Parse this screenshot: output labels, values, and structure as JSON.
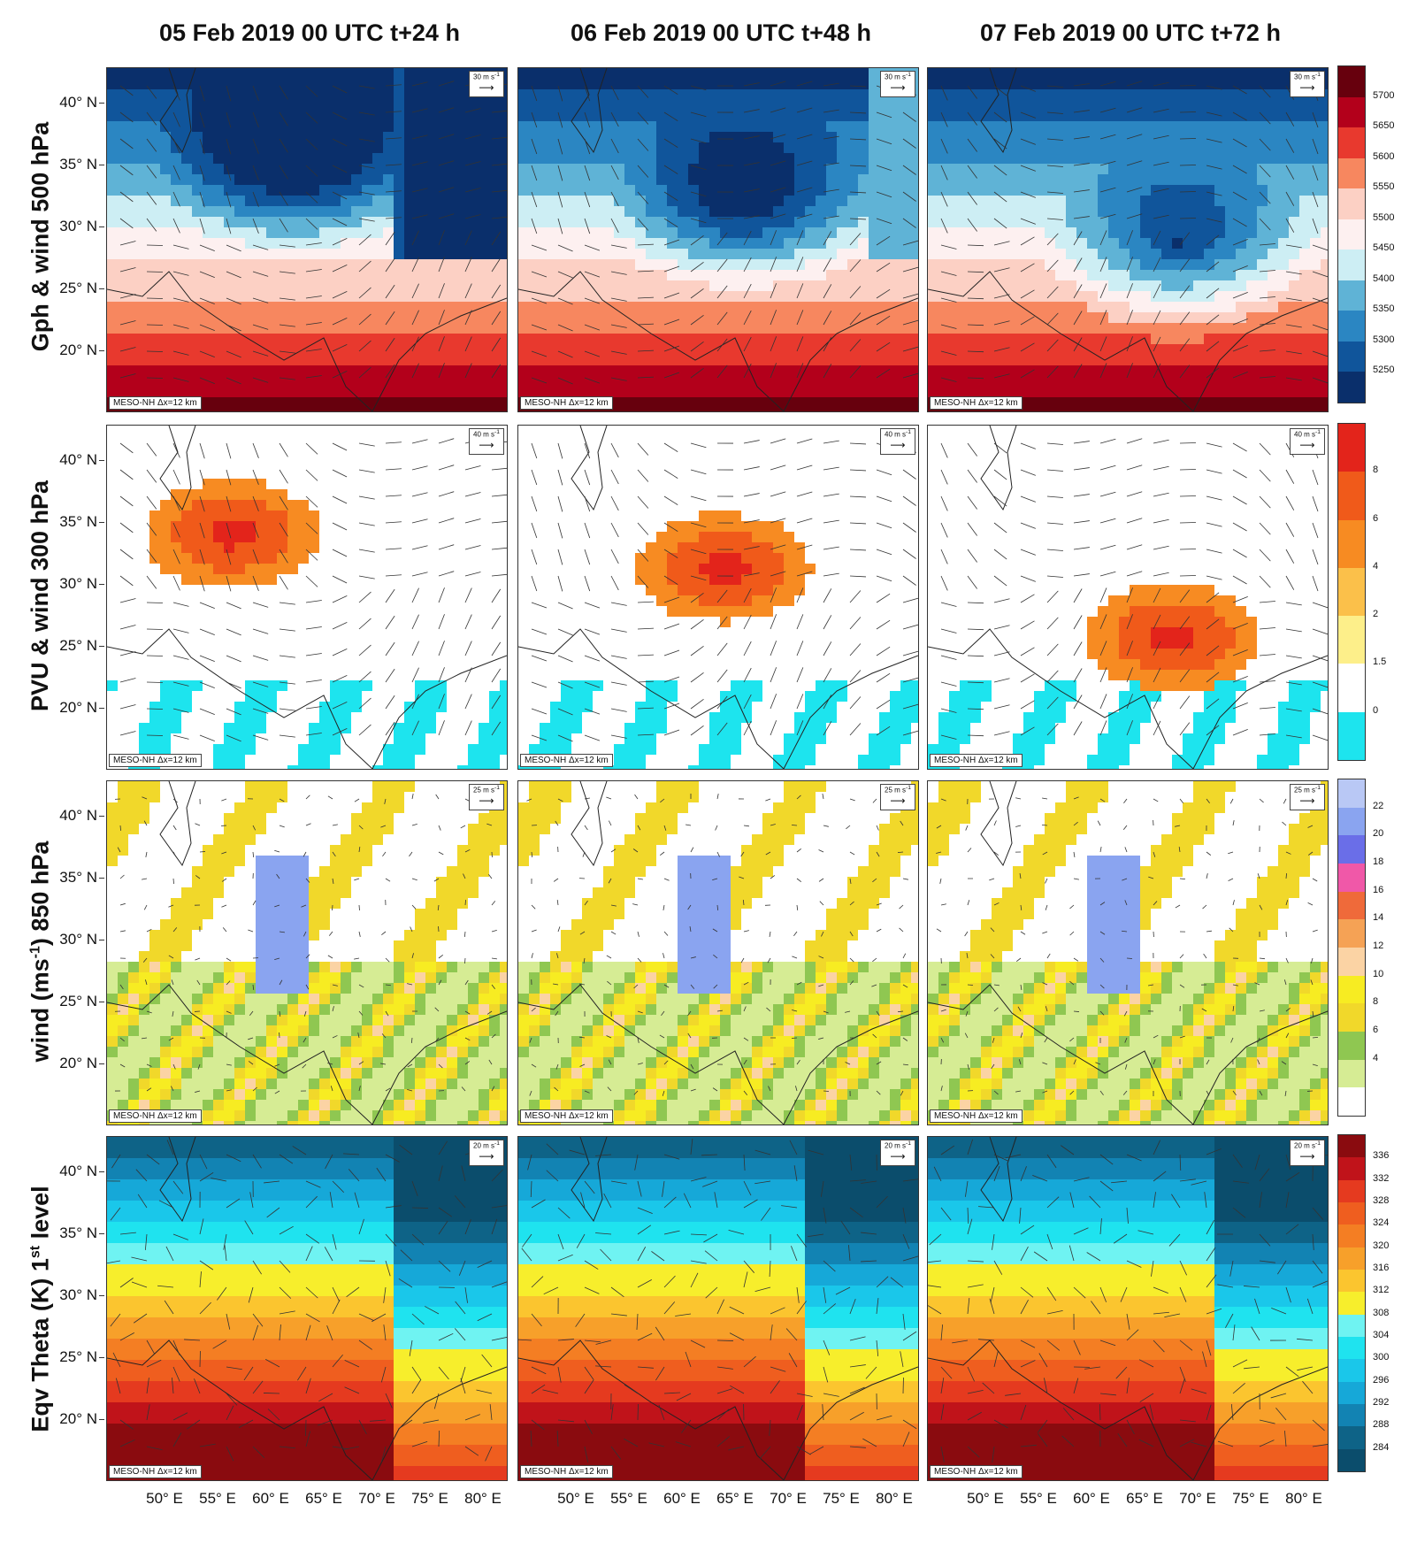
{
  "columns": [
    {
      "title": "05 Feb 2019 00 UTC t+24 h"
    },
    {
      "title": "06 Feb 2019 00 UTC t+48 h"
    },
    {
      "title": "07 Feb 2019 00 UTC t+72 h"
    }
  ],
  "rows": [
    {
      "label_main": "Gph & wind 500 hPa",
      "label_sup": "",
      "label_tail": "",
      "ref_vector": "30 m s",
      "colorbar": {
        "ticks": [
          "5700",
          "5650",
          "5600",
          "5550",
          "5500",
          "5450",
          "5400",
          "5350",
          "5300",
          "5250"
        ],
        "colors": [
          "#67000d",
          "#b3001b",
          "#e8392e",
          "#f7875f",
          "#fcd0c4",
          "#fdf0f0",
          "#cdeef4",
          "#5fb3d6",
          "#2b86c2",
          "#10559b",
          "#0a2f6b"
        ]
      }
    },
    {
      "label_main": "PVU & wind 300 hPa",
      "label_sup": "",
      "label_tail": "",
      "ref_vector": "40 m s",
      "colorbar": {
        "ticks": [
          "8",
          "6",
          "4",
          "2",
          "1.5",
          "0"
        ],
        "colors": [
          "#e3241b",
          "#f05a1a",
          "#f78b22",
          "#fbc04a",
          "#fdef8a",
          "#ffffff",
          "#1de4ee"
        ]
      }
    },
    {
      "label_main": "wind (ms",
      "label_sup": "-1",
      "label_tail": ") 850 hPa",
      "ref_vector": "25 m s",
      "colorbar": {
        "ticks": [
          "22",
          "20",
          "18",
          "16",
          "14",
          "12",
          "10",
          "8",
          "6",
          "4"
        ],
        "colors": [
          "#b9c8f5",
          "#8aa4f0",
          "#6a6ee8",
          "#f058a8",
          "#ef6a3a",
          "#f5a255",
          "#fbd3a4",
          "#f7ec22",
          "#f1d82a",
          "#8fc751",
          "#d6ec94",
          "#ffffff"
        ]
      }
    },
    {
      "label_main": "Eqv Theta (K) 1",
      "label_sup": "st",
      "label_tail": " level",
      "ref_vector": "20 m s",
      "colorbar": {
        "ticks": [
          "336",
          "332",
          "328",
          "324",
          "320",
          "316",
          "312",
          "308",
          "304",
          "300",
          "296",
          "292",
          "288",
          "284"
        ],
        "colors": [
          "#8a0b0f",
          "#c0131a",
          "#e53a1f",
          "#ef5e1f",
          "#f47e23",
          "#f7a02a",
          "#fbc52f",
          "#f7ee2c",
          "#6ff3f2",
          "#1fe3ef",
          "#1ac7ea",
          "#16a8d8",
          "#1283b3",
          "#0e6387",
          "#0b4d6c"
        ]
      }
    }
  ],
  "lat_ticks": [
    "40° N",
    "35° N",
    "30° N",
    "25° N",
    "20° N"
  ],
  "lon_ticks": [
    "50° E",
    "55° E",
    "60° E",
    "65° E",
    "70° E",
    "75° E",
    "80° E"
  ],
  "stamp": "MESO-NH Δx=12 km",
  "ref_exp": "-1"
}
